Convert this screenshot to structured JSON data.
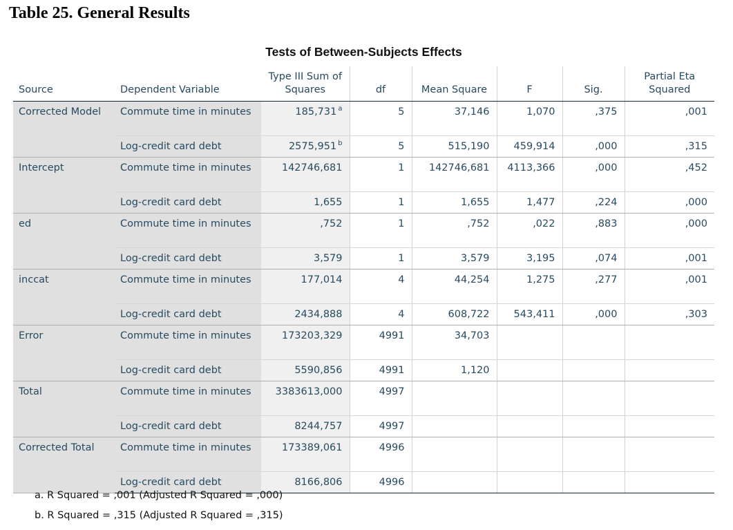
{
  "doc_title": "Table 25. General Results",
  "table_title": "Tests of Between-Subjects Effects",
  "columns": {
    "source": "Source",
    "dependent": "Dependent Variable",
    "type3": "Type III Sum of Squares",
    "df": "df",
    "mean_square": "Mean Square",
    "f": "F",
    "sig": "Sig.",
    "eta": "Partial Eta Squared"
  },
  "rows": [
    {
      "source": "Corrected Model",
      "r1": {
        "dv": "Commute time in minutes",
        "ss": "185,731",
        "sup": "a",
        "df": "5",
        "ms": "37,146",
        "f": "1,070",
        "sig": ",375",
        "eta": ",001"
      },
      "r2": {
        "dv": "Log-credit card debt",
        "ss": "2575,951",
        "sup": "b",
        "df": "5",
        "ms": "515,190",
        "f": "459,914",
        "sig": ",000",
        "eta": ",315"
      }
    },
    {
      "source": "Intercept",
      "r1": {
        "dv": "Commute time in minutes",
        "ss": "142746,681",
        "df": "1",
        "ms": "142746,681",
        "f": "4113,366",
        "sig": ",000",
        "eta": ",452"
      },
      "r2": {
        "dv": "Log-credit card debt",
        "ss": "1,655",
        "df": "1",
        "ms": "1,655",
        "f": "1,477",
        "sig": ",224",
        "eta": ",000"
      }
    },
    {
      "source": "ed",
      "r1": {
        "dv": "Commute time in minutes",
        "ss": ",752",
        "df": "1",
        "ms": ",752",
        "f": ",022",
        "sig": ",883",
        "eta": ",000"
      },
      "r2": {
        "dv": "Log-credit card debt",
        "ss": "3,579",
        "df": "1",
        "ms": "3,579",
        "f": "3,195",
        "sig": ",074",
        "eta": ",001"
      }
    },
    {
      "source": "inccat",
      "r1": {
        "dv": "Commute time in minutes",
        "ss": "177,014",
        "df": "4",
        "ms": "44,254",
        "f": "1,275",
        "sig": ",277",
        "eta": ",001"
      },
      "r2": {
        "dv": "Log-credit card debt",
        "ss": "2434,888",
        "df": "4",
        "ms": "608,722",
        "f": "543,411",
        "sig": ",000",
        "eta": ",303"
      }
    },
    {
      "source": "Error",
      "r1": {
        "dv": "Commute time in minutes",
        "ss": "173203,329",
        "df": "4991",
        "ms": "34,703",
        "f": "",
        "sig": "",
        "eta": ""
      },
      "r2": {
        "dv": "Log-credit card debt",
        "ss": "5590,856",
        "df": "4991",
        "ms": "1,120",
        "f": "",
        "sig": "",
        "eta": ""
      }
    },
    {
      "source": "Total",
      "r1": {
        "dv": "Commute time in minutes",
        "ss": "3383613,000",
        "df": "4997",
        "ms": "",
        "f": "",
        "sig": "",
        "eta": ""
      },
      "r2": {
        "dv": "Log-credit card debt",
        "ss": "8244,757",
        "df": "4997",
        "ms": "",
        "f": "",
        "sig": "",
        "eta": ""
      }
    },
    {
      "source": "Corrected Total",
      "r1": {
        "dv": "Commute time in minutes",
        "ss": "173389,061",
        "df": "4996",
        "ms": "",
        "f": "",
        "sig": "",
        "eta": ""
      },
      "r2": {
        "dv": "Log-credit card debt",
        "ss": "8166,806",
        "df": "4996",
        "ms": "",
        "f": "",
        "sig": "",
        "eta": ""
      }
    }
  ],
  "footnotes": [
    "a. R Squared = ,001 (Adjusted R Squared = ,000)",
    "b. R Squared = ,315 (Adjusted R Squared = ,315)"
  ]
}
